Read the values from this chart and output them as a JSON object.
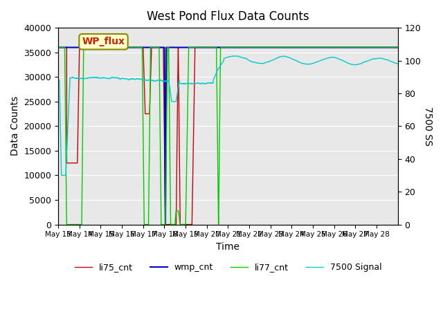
{
  "title": "West Pond Flux Data Counts",
  "xlabel": "Time",
  "ylabel_left": "Data Counts",
  "ylabel_right": "7500 SS",
  "ylim_left": [
    0,
    40000
  ],
  "ylim_right": [
    0,
    120
  ],
  "background_color": "#e8e8e8",
  "tick_labels": [
    "May 13",
    "May 14",
    "May 15",
    "May 16",
    "May 17",
    "May 18",
    "May 19",
    "May 20",
    "May 21",
    "May 22",
    "May 23",
    "May 24",
    "May 25",
    "May 26",
    "May 27",
    "May 28"
  ],
  "annotation_text": "WP_flux",
  "annotation_color": "#cc2200",
  "annotation_bg": "#ffffcc",
  "legend_entries": [
    "li75_cnt",
    "wmp_cnt",
    "li77_cnt",
    "7500 Signal"
  ],
  "legend_colors": [
    "#cc0000",
    "#0000cc",
    "#00cc00",
    "#00cccc"
  ]
}
